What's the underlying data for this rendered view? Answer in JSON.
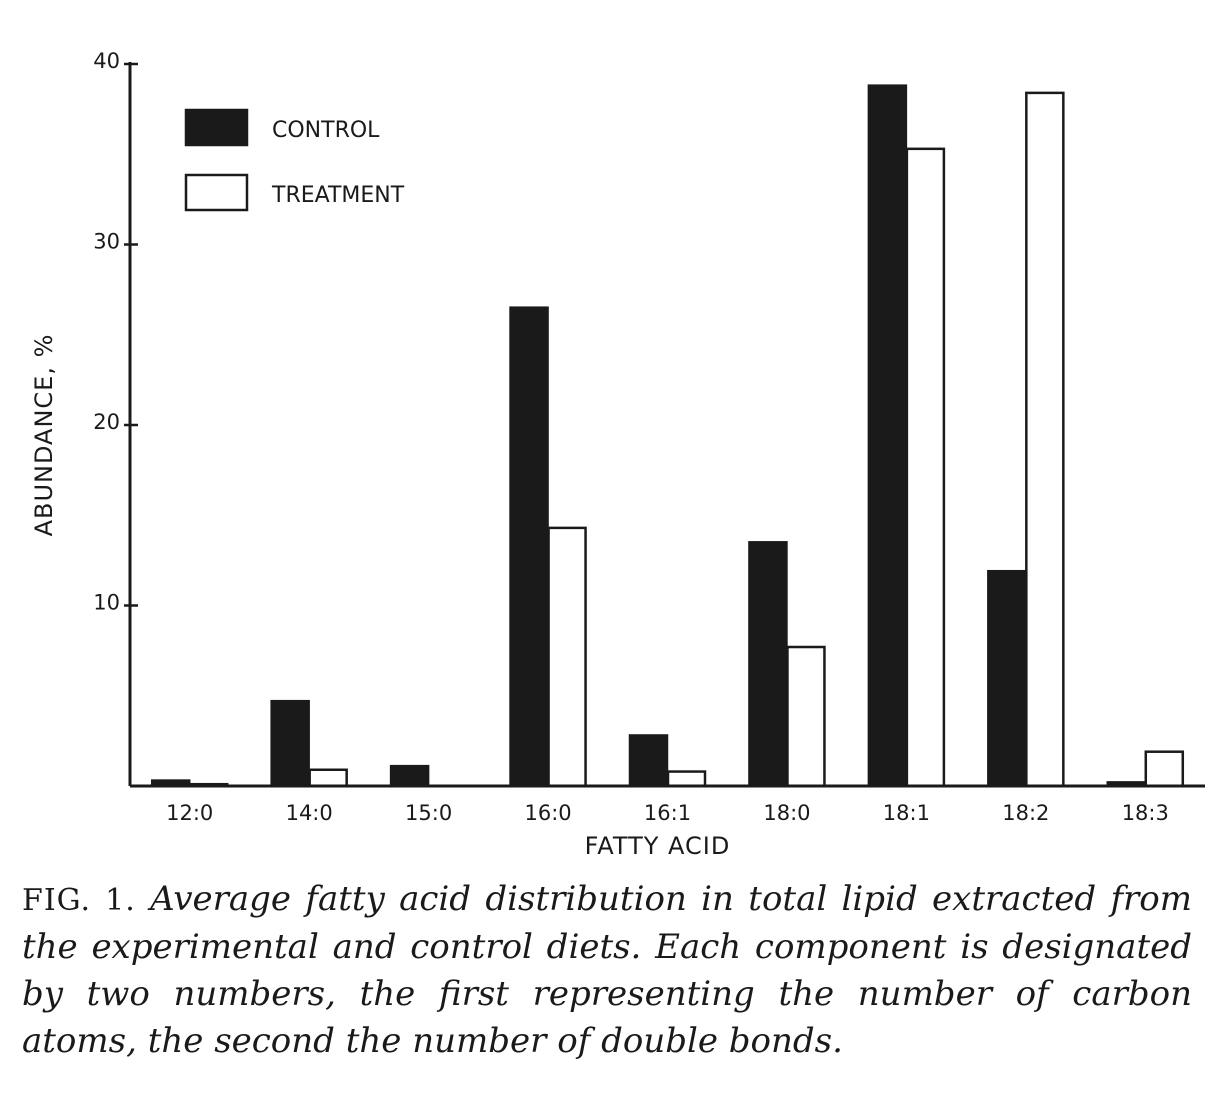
{
  "chart_data": {
    "type": "bar",
    "title": "",
    "xlabel": "FATTY ACID",
    "ylabel": "ABUNDANCE, %",
    "ylim": [
      0,
      40
    ],
    "yticks": [
      10,
      20,
      30,
      40
    ],
    "grid": false,
    "legend_placement": "top-left",
    "categories": [
      "12:0",
      "14:0",
      "15:0",
      "16:0",
      "16:1",
      "18:0",
      "18:1",
      "18:2",
      "18:3"
    ],
    "series": [
      {
        "name": "CONTROL",
        "fill": "#1a1a1a",
        "values": [
          0.3,
          4.7,
          1.1,
          26.5,
          2.8,
          13.5,
          38.8,
          11.9,
          0.2
        ]
      },
      {
        "name": "TREATMENT",
        "fill": "#ffffff",
        "values": [
          0.1,
          0.9,
          0.0,
          14.3,
          0.8,
          7.7,
          35.3,
          38.4,
          1.9
        ]
      }
    ]
  },
  "caption": {
    "label": "FIG. 1.",
    "text": "Average fatty acid distribution in total lipid extracted from the experimental and control diets. Each component is designated by two numbers, the first representing the number of carbon atoms, the second the number of double bonds."
  }
}
